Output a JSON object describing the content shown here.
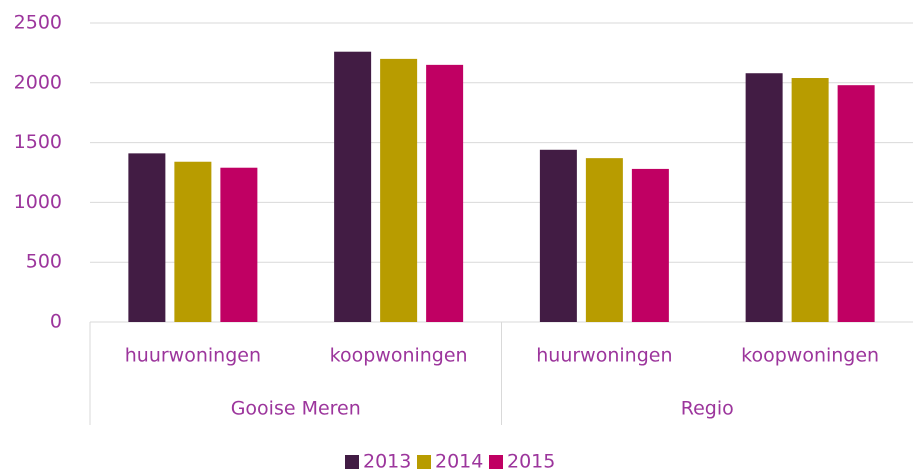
{
  "chart_data": {
    "type": "bar",
    "categories": [
      "huurwoningen",
      "koopwoningen",
      "huurwoningen",
      "koopwoningen"
    ],
    "groups": [
      "Gooise Meren",
      "Regio"
    ],
    "series": [
      {
        "name": "2013",
        "color": "#421c44",
        "values": [
          1410,
          2260,
          1440,
          2080
        ]
      },
      {
        "name": "2014",
        "color": "#b89c00",
        "values": [
          1340,
          2200,
          1370,
          2040
        ]
      },
      {
        "name": "2015",
        "color": "#c00063",
        "values": [
          1290,
          2150,
          1280,
          1980
        ]
      }
    ],
    "ylim": [
      0,
      2500
    ],
    "yticks": [
      0,
      500,
      1000,
      1500,
      2000,
      2500
    ],
    "grid": true,
    "legend": "bottom"
  }
}
